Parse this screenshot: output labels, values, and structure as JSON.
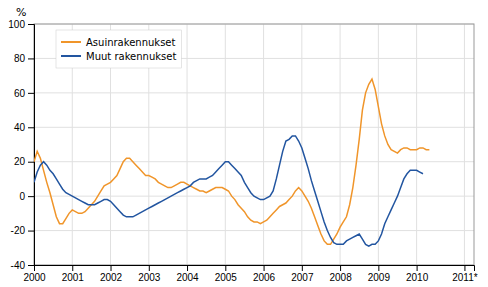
{
  "chart_data": {
    "type": "line",
    "y_label": "%",
    "x": [
      2000,
      2000.0833333333333,
      2000.1666666666667,
      2000.25,
      2000.3333333333333,
      2000.4166666666667,
      2000.5,
      2000.5833333333333,
      2000.6666666666667,
      2000.75,
      2000.8333333333333,
      2000.9166666666667,
      2001,
      2001.0833333333333,
      2001.1666666666667,
      2001.25,
      2001.3333333333333,
      2001.4166666666667,
      2001.5,
      2001.5833333333333,
      2001.6666666666667,
      2001.75,
      2001.8333333333333,
      2001.9166666666667,
      2002,
      2002.0833333333333,
      2002.1666666666667,
      2002.25,
      2002.3333333333333,
      2002.4166666666667,
      2002.5,
      2002.5833333333333,
      2002.6666666666667,
      2002.75,
      2002.8333333333333,
      2002.9166666666667,
      2003,
      2003.0833333333333,
      2003.1666666666667,
      2003.25,
      2003.3333333333333,
      2003.4166666666667,
      2003.5,
      2003.5833333333333,
      2003.6666666666667,
      2003.75,
      2003.8333333333333,
      2003.9166666666667,
      2004,
      2004.0833333333333,
      2004.1666666666667,
      2004.25,
      2004.3333333333333,
      2004.4166666666667,
      2004.5,
      2004.5833333333333,
      2004.6666666666667,
      2004.75,
      2004.8333333333333,
      2004.9166666666667,
      2005,
      2005.0833333333333,
      2005.1666666666667,
      2005.25,
      2005.3333333333333,
      2005.4166666666667,
      2005.5,
      2005.5833333333333,
      2005.6666666666667,
      2005.75,
      2005.8333333333333,
      2005.9166666666667,
      2006,
      2006.0833333333333,
      2006.1666666666667,
      2006.25,
      2006.3333333333333,
      2006.4166666666667,
      2006.5,
      2006.5833333333333,
      2006.6666666666667,
      2006.75,
      2006.8333333333333,
      2006.9166666666667,
      2007,
      2007.0833333333333,
      2007.1666666666667,
      2007.25,
      2007.3333333333333,
      2007.4166666666667,
      2007.5,
      2007.5833333333333,
      2007.6666666666667,
      2007.75,
      2007.8333333333333,
      2007.9166666666667,
      2008,
      2008.0833333333333,
      2008.1666666666667,
      2008.25,
      2008.3333333333333,
      2008.4166666666667,
      2008.5,
      2008.5833333333333,
      2008.6666666666667,
      2008.75,
      2008.8333333333333,
      2008.9166666666667,
      2009,
      2009.0833333333333,
      2009.1666666666667,
      2009.25,
      2009.3333333333333,
      2009.4166666666667,
      2009.5,
      2009.5833333333333,
      2009.6666666666667,
      2009.75,
      2009.8333333333333,
      2009.9166666666667,
      2010,
      2010.0833333333333,
      2010.1666666666667,
      2010.25,
      2010.3333333333333
    ],
    "series": [
      {
        "name": "Asuinrakennukset",
        "color": "#F0952A",
        "values": [
          20,
          26,
          22,
          15,
          8,
          2,
          -5,
          -12,
          -16,
          -16,
          -13,
          -10,
          -8,
          -9,
          -10,
          -10,
          -9,
          -7,
          -5,
          -3,
          0,
          3,
          6,
          7,
          8,
          10,
          12,
          16,
          20,
          22,
          22,
          20,
          18,
          16,
          14,
          12,
          12,
          11,
          10,
          8,
          7,
          6,
          5,
          5,
          6,
          7,
          8,
          8,
          7,
          6,
          5,
          4,
          3,
          3,
          2,
          3,
          4,
          5,
          5,
          5,
          4,
          3,
          0,
          -2,
          -5,
          -7,
          -9,
          -12,
          -14,
          -15,
          -15,
          -16,
          -15,
          -14,
          -12,
          -10,
          -8,
          -6,
          -5,
          -4,
          -2,
          0,
          3,
          5,
          3,
          0,
          -3,
          -7,
          -12,
          -17,
          -22,
          -26,
          -28,
          -28,
          -25,
          -22,
          -18,
          -15,
          -12,
          -5,
          5,
          18,
          33,
          50,
          60,
          65,
          68,
          62,
          52,
          42,
          35,
          30,
          27,
          26,
          25,
          27,
          28,
          28,
          27,
          27,
          27,
          28,
          28,
          27,
          27
        ]
      },
      {
        "name": "Muut rakennukset",
        "color": "#2255A0",
        "values": [
          8,
          14,
          18,
          20,
          18,
          15,
          13,
          10,
          7,
          4,
          2,
          1,
          0,
          -1,
          -2,
          -3,
          -4,
          -5,
          -5,
          -5,
          -4,
          -3,
          -2,
          -2,
          -3,
          -5,
          -7,
          -9,
          -11,
          -12,
          -12,
          -12,
          -11,
          -10,
          -9,
          -8,
          -7,
          -6,
          -5,
          -4,
          -3,
          -2,
          -1,
          0,
          1,
          2,
          3,
          4,
          5,
          6,
          8,
          9,
          10,
          10,
          10,
          11,
          12,
          14,
          16,
          18,
          20,
          20,
          18,
          16,
          14,
          12,
          8,
          5,
          2,
          0,
          -1,
          -2,
          -2,
          -1,
          0,
          3,
          10,
          18,
          26,
          32,
          33,
          35,
          35,
          32,
          28,
          22,
          16,
          9,
          3,
          -3,
          -9,
          -15,
          -20,
          -24,
          -27,
          -28,
          -28,
          -28,
          -26,
          -25,
          -24,
          -23,
          -22,
          -25,
          -28,
          -29,
          -28,
          -28,
          -26,
          -22,
          -16,
          -12,
          -8,
          -4,
          0,
          5,
          10,
          13,
          15,
          15,
          15,
          14,
          13,
          null,
          null
        ]
      }
    ],
    "xlim": [
      2000,
      2011.5
    ],
    "xticks": [
      2000,
      2001,
      2002,
      2003,
      2004,
      2005,
      2006,
      2007,
      2008,
      2009,
      2010,
      {
        "value": 2011.25,
        "label": "2011*"
      }
    ],
    "ylim": [
      -40,
      100
    ],
    "yticks": [
      -40,
      -20,
      0,
      20,
      40,
      60,
      80,
      100
    ],
    "grid": true,
    "legend": "upper left"
  }
}
